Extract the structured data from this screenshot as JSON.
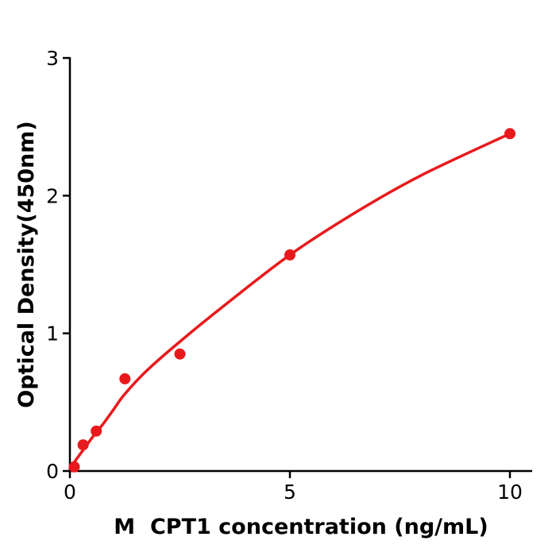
{
  "chart_data": {
    "type": "scatter",
    "title": "",
    "xlabel": "M  CPT1 concentration (ng/mL)",
    "ylabel": "Optical Density(450nm)",
    "xlim": [
      0,
      10.5
    ],
    "ylim": [
      0,
      3
    ],
    "xticks": [
      0,
      5,
      10
    ],
    "yticks": [
      0,
      1,
      2,
      3
    ],
    "grid": false,
    "legend": "none",
    "point_color": "#e8191c",
    "line_color": "#e8191c",
    "axis_color": "#000000",
    "points": {
      "x": [
        0.1,
        0.3,
        0.6,
        1.25,
        2.5,
        5,
        10
      ],
      "y": [
        0.03,
        0.19,
        0.29,
        0.67,
        0.85,
        1.57,
        2.45
      ]
    },
    "trendline": {
      "x": [
        0,
        0.25,
        0.5,
        0.75,
        1.0,
        1.25,
        1.75,
        2.5,
        3.5,
        5.0,
        6.5,
        8.0,
        10.0
      ],
      "y": [
        0.02,
        0.13,
        0.24,
        0.34,
        0.45,
        0.56,
        0.73,
        0.94,
        1.2,
        1.57,
        1.88,
        2.15,
        2.45
      ]
    }
  }
}
